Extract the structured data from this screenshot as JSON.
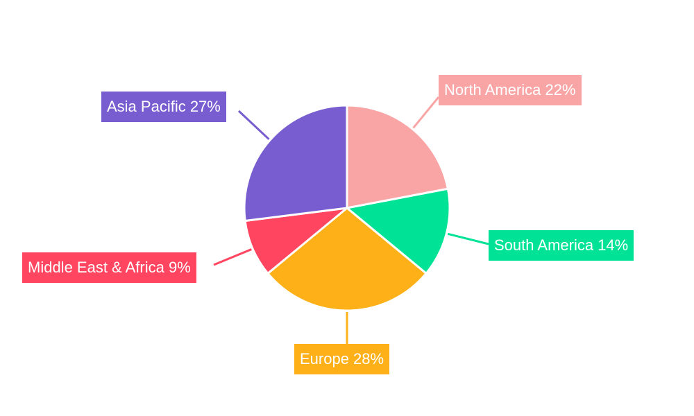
{
  "chart_data": {
    "type": "pie",
    "title": "",
    "slices": [
      {
        "label": "North America 22%",
        "name": "North America",
        "value": 22,
        "color": "#f9a5a6"
      },
      {
        "label": "South America 14%",
        "name": "South America",
        "value": 14,
        "color": "#00e396"
      },
      {
        "label": "Europe 28%",
        "name": "Europe",
        "value": 28,
        "color": "#feb019"
      },
      {
        "label": "Middle East & Africa 9%",
        "name": "Middle East & Africa",
        "value": 9,
        "color": "#ff4560"
      },
      {
        "label": "Asia Pacific 27%",
        "name": "Asia Pacific",
        "value": 27,
        "color": "#775dd0"
      }
    ]
  }
}
